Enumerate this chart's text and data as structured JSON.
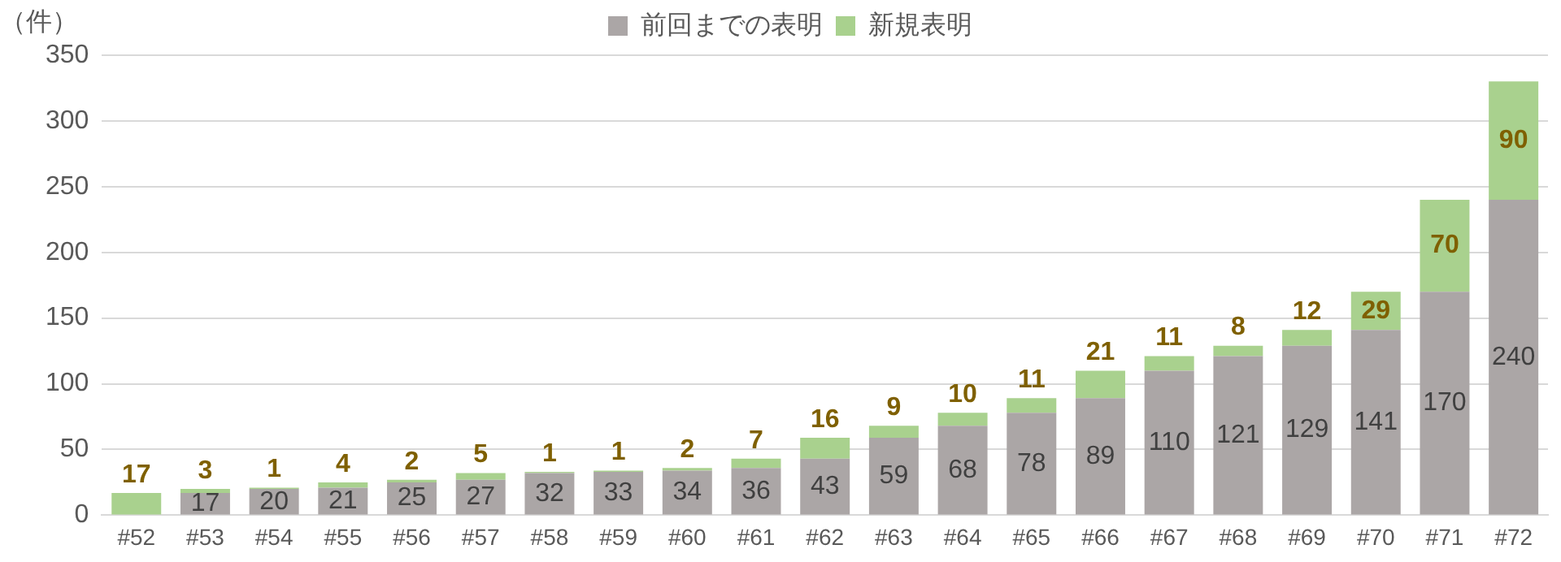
{
  "chart_data": {
    "type": "bar",
    "stacked": true,
    "ylabel": "（件）",
    "categories": [
      "#52",
      "#53",
      "#54",
      "#55",
      "#56",
      "#57",
      "#58",
      "#59",
      "#60",
      "#61",
      "#62",
      "#63",
      "#64",
      "#65",
      "#66",
      "#67",
      "#68",
      "#69",
      "#70",
      "#71",
      "#72"
    ],
    "series": [
      {
        "name": "前回までの表明",
        "color": "#aba6a6",
        "values": [
          0,
          17,
          20,
          21,
          25,
          27,
          32,
          33,
          34,
          36,
          43,
          59,
          68,
          78,
          89,
          110,
          121,
          129,
          141,
          170,
          240
        ],
        "value_labels": [
          null,
          "17",
          "20",
          "21",
          "25",
          "27",
          "32",
          "33",
          "34",
          "36",
          "43",
          "59",
          "68",
          "78",
          "89",
          "110",
          "121",
          "129",
          "141",
          "170",
          "240"
        ]
      },
      {
        "name": "新規表明",
        "color": "#a9d18e",
        "values": [
          17,
          3,
          1,
          4,
          2,
          5,
          1,
          1,
          2,
          7,
          16,
          9,
          10,
          11,
          21,
          11,
          8,
          12,
          29,
          70,
          90
        ],
        "value_labels": [
          "17",
          "3",
          "1",
          "4",
          "2",
          "5",
          "1",
          "1",
          "2",
          "7",
          "16",
          "9",
          "10",
          "11",
          "21",
          "11",
          "8",
          "12",
          "29",
          "70",
          "90"
        ]
      }
    ],
    "ylim": [
      0,
      350
    ],
    "yticks": [
      0,
      50,
      100,
      150,
      200,
      250,
      300,
      350
    ],
    "grid": "y",
    "legend": "top"
  }
}
